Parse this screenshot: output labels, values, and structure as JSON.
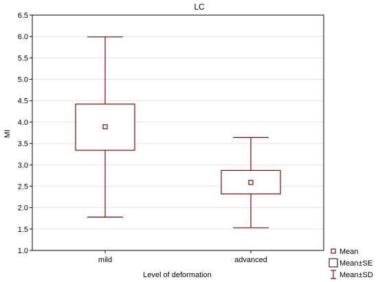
{
  "chart_data": {
    "type": "boxplot",
    "title": "LC",
    "xlabel": "Level of deformation",
    "ylabel": "MI",
    "ylim": [
      1.0,
      6.5
    ],
    "yticks": [
      "1.0",
      "1.5",
      "2.0",
      "2.5",
      "3.0",
      "3.5",
      "4.0",
      "4.5",
      "5.0",
      "5.5",
      "6.0",
      "6.5"
    ],
    "grid": true,
    "legend_position": "bottom-right",
    "categories": [
      "mild",
      "advanced"
    ],
    "groups": [
      {
        "category": "mild",
        "mean": 3.89,
        "se_low": 3.34,
        "se_high": 4.42,
        "sd_low": 1.78,
        "sd_high": 5.99
      },
      {
        "category": "advanced",
        "mean": 2.59,
        "se_low": 2.32,
        "se_high": 2.87,
        "sd_low": 1.53,
        "sd_high": 3.64
      }
    ],
    "legend": [
      {
        "symbol": "small-square",
        "label": "Mean"
      },
      {
        "symbol": "box",
        "label": "Mean±SE"
      },
      {
        "symbol": "whisker",
        "label": "Mean±SD"
      }
    ],
    "colors": {
      "series": "#8b0000",
      "grid": "#e2e2e2",
      "frame": "#000000"
    }
  }
}
